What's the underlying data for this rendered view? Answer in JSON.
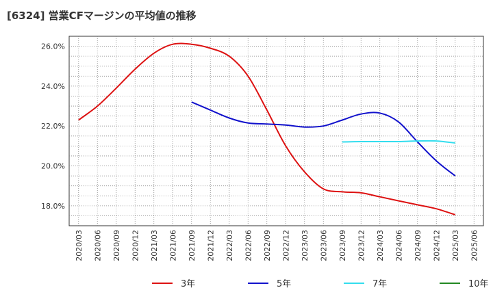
{
  "chart_data": {
    "type": "line",
    "title": "[6324]  営業CFマージンの平均値の推移",
    "x_labels": [
      "2020/03",
      "2020/06",
      "2020/09",
      "2020/12",
      "2021/03",
      "2021/06",
      "2021/09",
      "2021/12",
      "2022/03",
      "2022/06",
      "2022/09",
      "2022/12",
      "2023/03",
      "2023/06",
      "2023/09",
      "2023/12",
      "2024/03",
      "2024/06",
      "2024/09",
      "2024/12",
      "2025/03",
      "2025/06"
    ],
    "y_ticks": [
      "18.0%",
      "20.0%",
      "22.0%",
      "24.0%",
      "26.0%"
    ],
    "ylim": [
      17.0,
      26.5
    ],
    "grid": true,
    "legend_position": "bottom",
    "series": [
      {
        "name": "3年",
        "color": "#dd1111",
        "values": [
          22.3,
          23.0,
          23.9,
          24.85,
          25.65,
          26.1,
          26.1,
          25.9,
          25.5,
          24.5,
          22.8,
          21.0,
          19.7,
          18.85,
          18.7,
          18.65,
          18.45,
          18.25,
          18.05,
          17.85,
          17.55,
          null
        ]
      },
      {
        "name": "5年",
        "color": "#1111cc",
        "values": [
          null,
          null,
          null,
          null,
          null,
          null,
          23.2,
          22.8,
          22.4,
          22.15,
          22.1,
          22.05,
          21.95,
          22.0,
          22.3,
          22.6,
          22.65,
          22.2,
          21.2,
          20.25,
          19.5,
          null
        ]
      },
      {
        "name": "7年",
        "color": "#33ddee",
        "values": [
          null,
          null,
          null,
          null,
          null,
          null,
          null,
          null,
          null,
          null,
          null,
          null,
          null,
          null,
          21.2,
          21.22,
          21.22,
          21.22,
          21.25,
          21.25,
          21.15,
          null
        ]
      },
      {
        "name": "10年",
        "color": "#228822",
        "values": [
          null,
          null,
          null,
          null,
          null,
          null,
          null,
          null,
          null,
          null,
          null,
          null,
          null,
          null,
          null,
          null,
          null,
          null,
          null,
          null,
          null,
          null
        ]
      }
    ]
  }
}
